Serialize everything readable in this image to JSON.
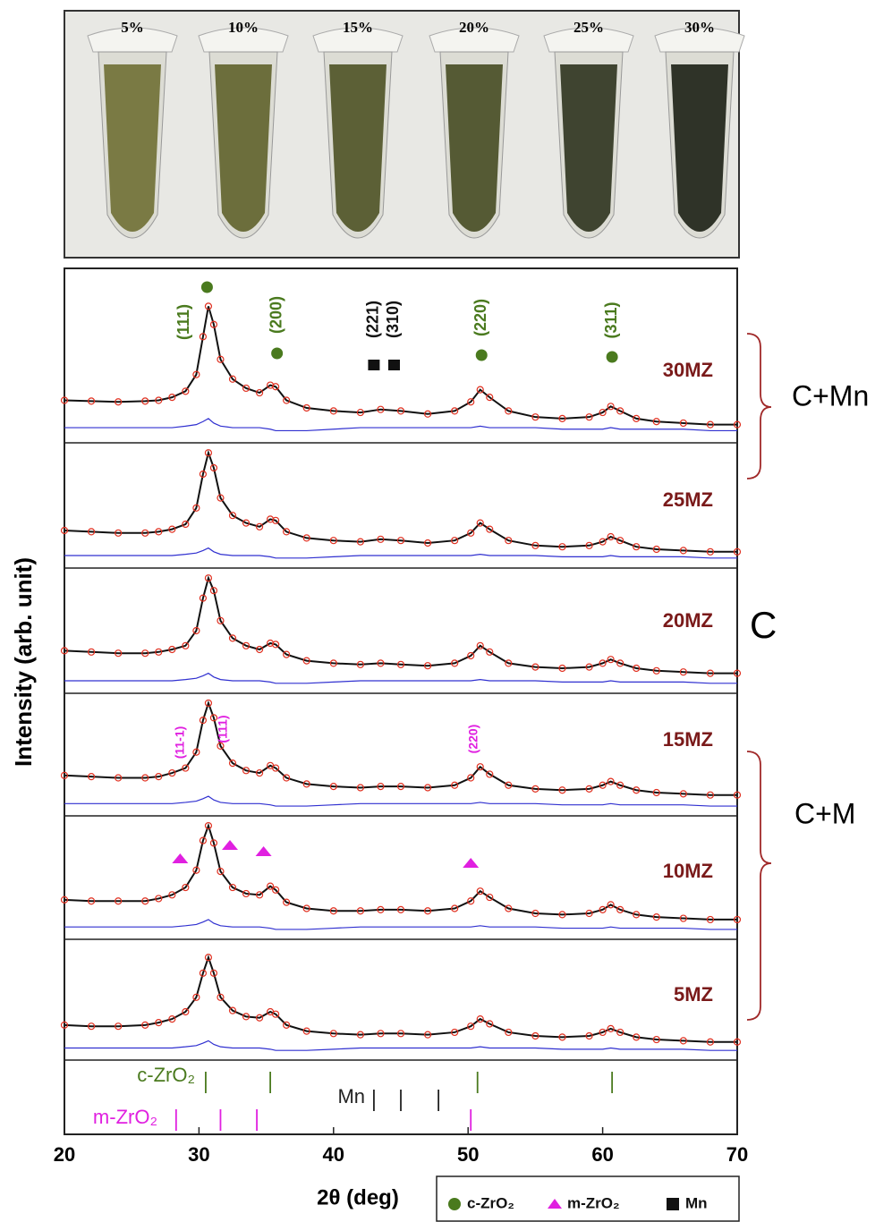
{
  "photo": {
    "labels": [
      "5%",
      "10%",
      "15%",
      "20%",
      "25%",
      "30%"
    ]
  },
  "chart_data": {
    "type": "line",
    "xlabel": "2θ (deg)",
    "ylabel": "Intensity (arb. unit)",
    "xlim": [
      20,
      70
    ],
    "xticks": [
      20,
      30,
      40,
      50,
      60,
      70
    ],
    "x": [
      20,
      22,
      24,
      26,
      27,
      28,
      29,
      29.8,
      30.3,
      30.7,
      31.1,
      31.6,
      32.5,
      33.5,
      34.5,
      35.3,
      35.7,
      36.5,
      38,
      40,
      42,
      43.5,
      45,
      47,
      49,
      50.2,
      50.9,
      51.6,
      53,
      55,
      57,
      59,
      60,
      60.6,
      61.3,
      62.5,
      64,
      66,
      68,
      70
    ],
    "data_color": "#e03020",
    "fit_color": "#111111",
    "residual_color": "#3030d0",
    "series": [
      {
        "name": "30MZ",
        "ylim": [
          0,
          115
        ],
        "values": [
          28,
          27.5,
          27,
          27.5,
          28,
          30,
          34,
          45,
          70,
          90,
          78,
          55,
          42,
          36,
          33,
          38,
          37,
          28,
          23,
          21,
          20,
          22,
          21,
          19,
          21,
          27,
          35,
          30,
          21,
          17,
          16,
          17,
          20,
          24,
          21,
          16,
          14,
          13,
          12,
          12
        ],
        "residual": [
          10,
          10,
          10,
          10,
          10,
          10,
          11,
          12,
          14,
          16,
          13,
          11,
          10,
          10,
          10,
          9,
          8,
          8,
          8,
          9,
          10,
          10,
          10,
          10,
          10,
          10,
          11,
          10,
          10,
          10,
          9,
          9,
          9,
          10,
          9,
          9,
          9,
          9,
          8,
          8
        ]
      },
      {
        "name": "25MZ",
        "ylim": [
          0,
          100
        ],
        "values": [
          30,
          29,
          28,
          28,
          29,
          31,
          35,
          48,
          75,
          92,
          80,
          56,
          42,
          36,
          33,
          39,
          38,
          29,
          24,
          22,
          21,
          23,
          22,
          20,
          22,
          28,
          36,
          31,
          22,
          18,
          17,
          18,
          21,
          25,
          22,
          17,
          15,
          14,
          13,
          13
        ],
        "residual": [
          10,
          10,
          10,
          10,
          10,
          10,
          11,
          12,
          14,
          16,
          13,
          11,
          10,
          10,
          10,
          9,
          8,
          8,
          8,
          9,
          10,
          10,
          10,
          10,
          10,
          10,
          11,
          10,
          10,
          10,
          9,
          9,
          9,
          10,
          9,
          9,
          9,
          9,
          8,
          8
        ]
      },
      {
        "name": "20MZ",
        "ylim": [
          0,
          100
        ],
        "values": [
          34,
          33,
          32,
          32,
          33,
          35,
          38,
          50,
          76,
          92,
          82,
          58,
          44,
          38,
          35,
          40,
          39,
          31,
          26,
          24,
          23,
          24,
          23,
          22,
          24,
          30,
          38,
          33,
          24,
          21,
          20,
          21,
          24,
          27,
          24,
          20,
          18,
          17,
          16,
          16
        ],
        "residual": [
          10,
          10,
          10,
          10,
          10,
          10,
          11,
          12,
          14,
          16,
          13,
          11,
          10,
          10,
          10,
          9,
          8,
          8,
          8,
          9,
          10,
          10,
          10,
          10,
          10,
          10,
          11,
          10,
          10,
          10,
          9,
          9,
          9,
          10,
          9,
          9,
          9,
          9,
          8,
          8
        ]
      },
      {
        "name": "15MZ",
        "ylim": [
          0,
          100
        ],
        "values": [
          33,
          32,
          31,
          31,
          32,
          35,
          39,
          52,
          78,
          92,
          80,
          57,
          43,
          37,
          35,
          41,
          39,
          31,
          26,
          24,
          23,
          24,
          24,
          23,
          25,
          31,
          40,
          34,
          25,
          22,
          21,
          22,
          25,
          28,
          25,
          21,
          19,
          18,
          17,
          17
        ],
        "residual": [
          10,
          10,
          10,
          10,
          10,
          10,
          11,
          12,
          14,
          16,
          13,
          11,
          10,
          10,
          10,
          9,
          8,
          8,
          8,
          9,
          10,
          10,
          10,
          10,
          10,
          10,
          11,
          10,
          10,
          10,
          9,
          9,
          9,
          10,
          9,
          9,
          9,
          9,
          8,
          8
        ]
      },
      {
        "name": "10MZ",
        "ylim": [
          0,
          100
        ],
        "values": [
          32,
          31,
          31,
          31,
          33,
          36,
          42,
          56,
          80,
          92,
          78,
          55,
          42,
          37,
          36,
          43,
          40,
          30,
          25,
          23,
          23,
          24,
          24,
          23,
          25,
          31,
          39,
          34,
          25,
          21,
          20,
          21,
          24,
          28,
          24,
          20,
          18,
          17,
          16,
          16
        ],
        "residual": [
          10,
          10,
          10,
          10,
          10,
          10,
          11,
          12,
          14,
          16,
          13,
          11,
          10,
          10,
          10,
          9,
          8,
          8,
          8,
          9,
          10,
          10,
          10,
          10,
          10,
          10,
          11,
          10,
          10,
          10,
          9,
          9,
          9,
          10,
          9,
          9,
          9,
          9,
          8,
          8
        ]
      },
      {
        "name": "5MZ",
        "ylim": [
          0,
          100
        ],
        "values": [
          29,
          28,
          28,
          29,
          31,
          34,
          40,
          52,
          72,
          85,
          72,
          52,
          41,
          36,
          35,
          40,
          38,
          29,
          24,
          22,
          21,
          22,
          22,
          21,
          23,
          28,
          34,
          30,
          23,
          20,
          19,
          20,
          23,
          26,
          23,
          19,
          17,
          16,
          15,
          15
        ],
        "residual": [
          10,
          10,
          10,
          10,
          10,
          10,
          11,
          12,
          14,
          16,
          13,
          11,
          10,
          10,
          10,
          9,
          8,
          8,
          8,
          9,
          10,
          10,
          10,
          10,
          10,
          10,
          11,
          10,
          10,
          10,
          9,
          9,
          9,
          10,
          9,
          9,
          9,
          9,
          8,
          8
        ]
      }
    ],
    "c_peaks": [
      {
        "label": "(111)",
        "x": 30.6
      },
      {
        "label": "(200)",
        "x": 35.8
      },
      {
        "label": "(220)",
        "x": 51
      },
      {
        "label": "(311)",
        "x": 60.7
      }
    ],
    "mn_peaks": [
      {
        "label": "(221)",
        "x": 43
      },
      {
        "label": "(310)",
        "x": 44.5
      }
    ],
    "m_labels": [
      {
        "label": "(11-1)",
        "x": 28.3
      },
      {
        "label": "(111)",
        "x": 31.5
      },
      {
        "label": "(220)",
        "x": 50.1
      }
    ],
    "m_markers": [
      28.6,
      32.3,
      34.8,
      50.2
    ],
    "references": [
      {
        "name": "c-ZrO₂",
        "color": "#4a7a1e",
        "positions": [
          30.5,
          35.3,
          50.7,
          60.7
        ]
      },
      {
        "name": "Mn",
        "color": "#222222",
        "positions": [
          43,
          45,
          47.8
        ]
      },
      {
        "name": "m-ZrO₂",
        "color": "#e020e0",
        "positions": [
          28.3,
          31.6,
          34.3,
          50.2
        ]
      }
    ],
    "legend": [
      {
        "name": "c-ZrO₂",
        "marker": "circle",
        "color": "#4a7a1e"
      },
      {
        "name": "m-ZrO₂",
        "marker": "triangle",
        "color": "#e020e0"
      },
      {
        "name": "Mn",
        "marker": "square",
        "color": "#111111"
      }
    ],
    "phase_regions": [
      "C+Mn",
      "C",
      "C+M"
    ]
  }
}
